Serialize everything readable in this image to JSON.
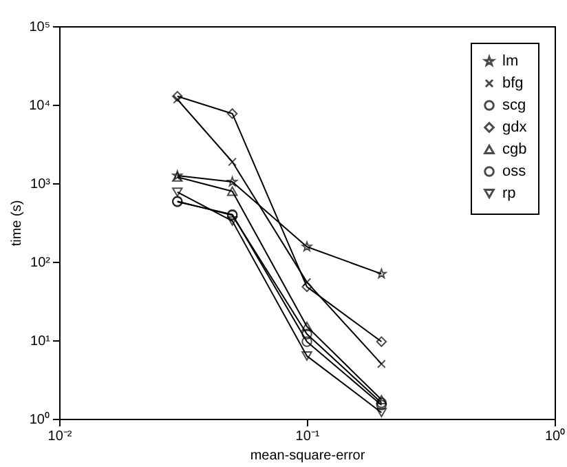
{
  "chart_data": {
    "type": "line",
    "xlabel": "mean-square-error",
    "ylabel": "time (s)",
    "log": "xy",
    "grid": false,
    "legend": "top right",
    "xlim": [
      0.01,
      1
    ],
    "xticks": [
      {
        "value": 0.01,
        "label": "10⁻²"
      },
      {
        "value": 0.1,
        "label": "10⁻¹"
      },
      {
        "value": 1,
        "label": "10⁰"
      }
    ],
    "ylim": [
      1,
      100000
    ],
    "yticks": [
      {
        "value": 1,
        "label": "10⁰"
      },
      {
        "value": 10,
        "label": "10¹"
      },
      {
        "value": 100,
        "label": "10²"
      },
      {
        "value": 1000,
        "label": "10³"
      },
      {
        "value": 10000,
        "label": "10⁴"
      },
      {
        "value": 100000,
        "label": "10⁵"
      }
    ],
    "x": [
      0.03,
      0.05,
      0.1,
      0.2
    ],
    "series": [
      {
        "name": "lm",
        "color": "#000000",
        "marker": "star",
        "values": [
          1250,
          1040,
          155,
          70
        ]
      },
      {
        "name": "bfg",
        "color": "#000000",
        "marker": "cross",
        "values": [
          11700,
          1870,
          55,
          5
        ]
      },
      {
        "name": "scg",
        "color": "#000000",
        "marker": "circle",
        "values": [
          580,
          400,
          9.6,
          1.5
        ]
      },
      {
        "name": "gdx",
        "color": "#000000",
        "marker": "diamond",
        "values": [
          12800,
          7700,
          48,
          9.6
        ]
      },
      {
        "name": "cgb",
        "color": "#000000",
        "marker": "triangle",
        "values": [
          1200,
          790,
          15,
          1.75
        ]
      },
      {
        "name": "oss",
        "color": "#000000",
        "marker": "circle",
        "values": [
          590,
          390,
          12,
          1.6
        ]
      },
      {
        "name": "rp",
        "color": "#000000",
        "marker": "triangle-down",
        "values": [
          770,
          330,
          6.3,
          1.2
        ]
      }
    ]
  }
}
